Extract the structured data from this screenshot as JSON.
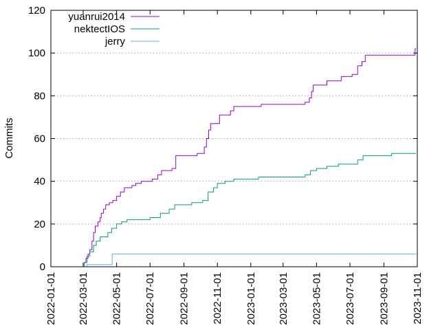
{
  "chart_data": {
    "type": "line",
    "title": "",
    "xlabel": "",
    "ylabel": "Commits",
    "ylim": [
      0,
      120
    ],
    "yticks": [
      0,
      20,
      40,
      60,
      80,
      100,
      120
    ],
    "xlim": [
      "2022-01-01",
      "2023-11-01"
    ],
    "xticks": [
      "2022-01-01",
      "2022-03-01",
      "2022-05-01",
      "2022-07-01",
      "2022-09-01",
      "2022-11-01",
      "2023-01-01",
      "2023-03-01",
      "2023-05-01",
      "2023-07-01",
      "2023-09-01",
      "2023-11-01"
    ],
    "grid": "horizontal dotted",
    "legend_position": "top-left",
    "step": true,
    "series": [
      {
        "name": "yuanrui2014",
        "color": "#9400d3",
        "points": [
          [
            "2022-02-25",
            0
          ],
          [
            "2022-03-01",
            1
          ],
          [
            "2022-03-03",
            2
          ],
          [
            "2022-03-06",
            4
          ],
          [
            "2022-03-10",
            6
          ],
          [
            "2022-03-13",
            8
          ],
          [
            "2022-03-17",
            12
          ],
          [
            "2022-03-20",
            16
          ],
          [
            "2022-03-23",
            19
          ],
          [
            "2022-03-28",
            21
          ],
          [
            "2022-04-01",
            23
          ],
          [
            "2022-04-03",
            25
          ],
          [
            "2022-04-07",
            27
          ],
          [
            "2022-04-11",
            29
          ],
          [
            "2022-04-18",
            30
          ],
          [
            "2022-04-24",
            31
          ],
          [
            "2022-05-01",
            33
          ],
          [
            "2022-05-08",
            35
          ],
          [
            "2022-05-15",
            37
          ],
          [
            "2022-05-29",
            38
          ],
          [
            "2022-06-05",
            39
          ],
          [
            "2022-06-15",
            40
          ],
          [
            "2022-07-05",
            41
          ],
          [
            "2022-07-15",
            43
          ],
          [
            "2022-07-22",
            45
          ],
          [
            "2022-08-10",
            46
          ],
          [
            "2022-08-17",
            52
          ],
          [
            "2022-09-25",
            53
          ],
          [
            "2022-10-08",
            56
          ],
          [
            "2022-10-12",
            60
          ],
          [
            "2022-10-16",
            64
          ],
          [
            "2022-10-20",
            67
          ],
          [
            "2022-10-26",
            67
          ],
          [
            "2022-11-05",
            71
          ],
          [
            "2022-11-25",
            73
          ],
          [
            "2022-12-01",
            75
          ],
          [
            "2023-01-20",
            76
          ],
          [
            "2023-04-10",
            77
          ],
          [
            "2023-04-18",
            79
          ],
          [
            "2023-04-22",
            82
          ],
          [
            "2023-04-25",
            85
          ],
          [
            "2023-05-20",
            87
          ],
          [
            "2023-06-15",
            89
          ],
          [
            "2023-07-05",
            90
          ],
          [
            "2023-07-15",
            94
          ],
          [
            "2023-07-23",
            96
          ],
          [
            "2023-07-29",
            99
          ],
          [
            "2023-10-28",
            102
          ]
        ]
      },
      {
        "name": "nektectIOS",
        "color": "#009e73",
        "points": [
          [
            "2022-02-28",
            0
          ],
          [
            "2022-03-03",
            2
          ],
          [
            "2022-03-08",
            5
          ],
          [
            "2022-03-13",
            7
          ],
          [
            "2022-03-20",
            10
          ],
          [
            "2022-03-25",
            12
          ],
          [
            "2022-04-01",
            14
          ],
          [
            "2022-04-15",
            16
          ],
          [
            "2022-04-22",
            18
          ],
          [
            "2022-05-01",
            20
          ],
          [
            "2022-05-10",
            21
          ],
          [
            "2022-05-20",
            22
          ],
          [
            "2022-07-01",
            23
          ],
          [
            "2022-07-20",
            25
          ],
          [
            "2022-08-05",
            27
          ],
          [
            "2022-08-15",
            29
          ],
          [
            "2022-09-15",
            30
          ],
          [
            "2022-10-05",
            31
          ],
          [
            "2022-10-15",
            35
          ],
          [
            "2022-10-25",
            37
          ],
          [
            "2022-11-01",
            39
          ],
          [
            "2022-11-15",
            40
          ],
          [
            "2022-12-01",
            41
          ],
          [
            "2023-01-15",
            42
          ],
          [
            "2023-04-10",
            43
          ],
          [
            "2023-04-20",
            45
          ],
          [
            "2023-05-01",
            46
          ],
          [
            "2023-05-20",
            47
          ],
          [
            "2023-06-10",
            48
          ],
          [
            "2023-07-15",
            50
          ],
          [
            "2023-07-25",
            52
          ],
          [
            "2023-09-15",
            53
          ]
        ]
      },
      {
        "name": "jerry",
        "color": "#56b4e9",
        "points": [
          [
            "2022-03-05",
            0
          ],
          [
            "2022-03-08",
            1
          ],
          [
            "2022-04-23",
            6
          ]
        ]
      }
    ],
    "end_date": "2023-10-30"
  }
}
